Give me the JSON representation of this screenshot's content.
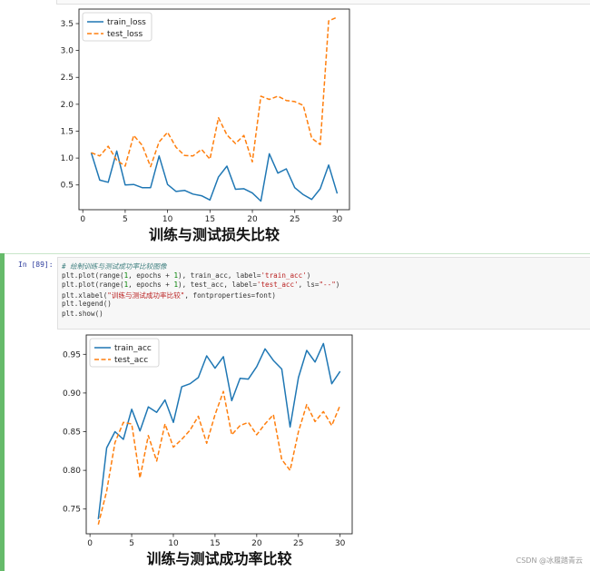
{
  "cell": {
    "prompt": "In [89]:",
    "code_lines": [
      {
        "parts": [
          [
            "c",
            "# 绘制训练与测试成功率比较图像"
          ]
        ]
      },
      {
        "parts": [
          [
            "t",
            "plt.plot(range("
          ],
          [
            "n",
            "1"
          ],
          [
            "t",
            ", epochs + "
          ],
          [
            "n",
            "1"
          ],
          [
            "t",
            "), train_acc, label="
          ],
          [
            "s",
            "'train_acc'"
          ],
          [
            "t",
            ")"
          ]
        ]
      },
      {
        "parts": [
          [
            "t",
            "plt.plot(range("
          ],
          [
            "n",
            "1"
          ],
          [
            "t",
            ", epochs + "
          ],
          [
            "n",
            "1"
          ],
          [
            "t",
            "), test_acc, label="
          ],
          [
            "s",
            "'test_acc'"
          ],
          [
            "t",
            ", ls="
          ],
          [
            "s",
            "\"--\""
          ],
          [
            "t",
            ")"
          ]
        ]
      },
      {
        "parts": [
          [
            "t",
            "plt.xlabel("
          ],
          [
            "s",
            "\"训练与测试成功率比较\""
          ],
          [
            "t",
            ", fontproperties=font)"
          ]
        ]
      },
      {
        "parts": [
          [
            "t",
            "plt.legend()"
          ]
        ]
      },
      {
        "parts": [
          [
            "t",
            "plt.show()"
          ]
        ]
      }
    ]
  },
  "watermark": "CSDN @冰履踏青云",
  "colors": {
    "train": "#1f77b4",
    "test": "#ff7f0e"
  },
  "chart_data": [
    {
      "type": "line",
      "xlabel": "训练与测试损失比较",
      "ylabel": "",
      "x": [
        1,
        2,
        3,
        4,
        5,
        6,
        7,
        8,
        9,
        10,
        11,
        12,
        13,
        14,
        15,
        16,
        17,
        18,
        19,
        20,
        21,
        22,
        23,
        24,
        25,
        26,
        27,
        28,
        29,
        30
      ],
      "xticks": [
        0,
        5,
        10,
        15,
        20,
        25,
        30
      ],
      "yticks": [
        0.5,
        1.0,
        1.5,
        2.0,
        2.5,
        3.0,
        3.5
      ],
      "ytick_labels": [
        "0.5",
        "1.0",
        "1.5",
        "2.0",
        "2.5",
        "3.0",
        "3.5"
      ],
      "xlim": [
        -0.45,
        31.45
      ],
      "ylim": [
        0.04,
        3.77
      ],
      "legend_position": "upper-left",
      "grid": false,
      "series": [
        {
          "name": "train_loss",
          "style": "solid",
          "values": [
            1.1,
            0.59,
            0.55,
            1.13,
            0.5,
            0.51,
            0.45,
            0.45,
            1.04,
            0.51,
            0.38,
            0.4,
            0.33,
            0.3,
            0.22,
            0.65,
            0.85,
            0.42,
            0.43,
            0.35,
            0.2,
            1.08,
            0.72,
            0.8,
            0.45,
            0.32,
            0.23,
            0.43,
            0.87,
            0.34
          ]
        },
        {
          "name": "test_loss",
          "style": "dashed",
          "values": [
            1.1,
            1.04,
            1.22,
            0.96,
            0.85,
            1.42,
            1.24,
            0.84,
            1.3,
            1.48,
            1.2,
            1.05,
            1.04,
            1.16,
            0.98,
            1.75,
            1.43,
            1.27,
            1.42,
            0.93,
            2.15,
            2.09,
            2.15,
            2.07,
            2.05,
            1.98,
            1.37,
            1.25,
            3.55,
            3.62
          ]
        }
      ]
    },
    {
      "type": "line",
      "xlabel": "训练与测试成功率比较",
      "ylabel": "",
      "x": [
        1,
        2,
        3,
        4,
        5,
        6,
        7,
        8,
        9,
        10,
        11,
        12,
        13,
        14,
        15,
        16,
        17,
        18,
        19,
        20,
        21,
        22,
        23,
        24,
        25,
        26,
        27,
        28,
        29,
        30
      ],
      "xticks": [
        0,
        5,
        10,
        15,
        20,
        25,
        30
      ],
      "yticks": [
        0.75,
        0.8,
        0.85,
        0.9,
        0.95
      ],
      "ytick_labels": [
        "0.75",
        "0.80",
        "0.85",
        "0.90",
        "0.95"
      ],
      "xlim": [
        -0.45,
        31.45
      ],
      "ylim": [
        0.718,
        0.975
      ],
      "legend_position": "upper-left",
      "grid": false,
      "series": [
        {
          "name": "train_acc",
          "style": "solid",
          "values": [
            0.737,
            0.829,
            0.85,
            0.84,
            0.879,
            0.851,
            0.882,
            0.875,
            0.891,
            0.862,
            0.908,
            0.912,
            0.92,
            0.948,
            0.932,
            0.947,
            0.89,
            0.919,
            0.918,
            0.934,
            0.957,
            0.942,
            0.931,
            0.856,
            0.92,
            0.955,
            0.94,
            0.964,
            0.912,
            0.928
          ]
        },
        {
          "name": "test_acc",
          "style": "dashed",
          "values": [
            0.73,
            0.773,
            0.836,
            0.862,
            0.86,
            0.79,
            0.845,
            0.812,
            0.86,
            0.83,
            0.84,
            0.852,
            0.87,
            0.835,
            0.872,
            0.902,
            0.846,
            0.858,
            0.862,
            0.846,
            0.86,
            0.872,
            0.814,
            0.8,
            0.85,
            0.885,
            0.863,
            0.876,
            0.858,
            0.884
          ]
        }
      ]
    }
  ]
}
